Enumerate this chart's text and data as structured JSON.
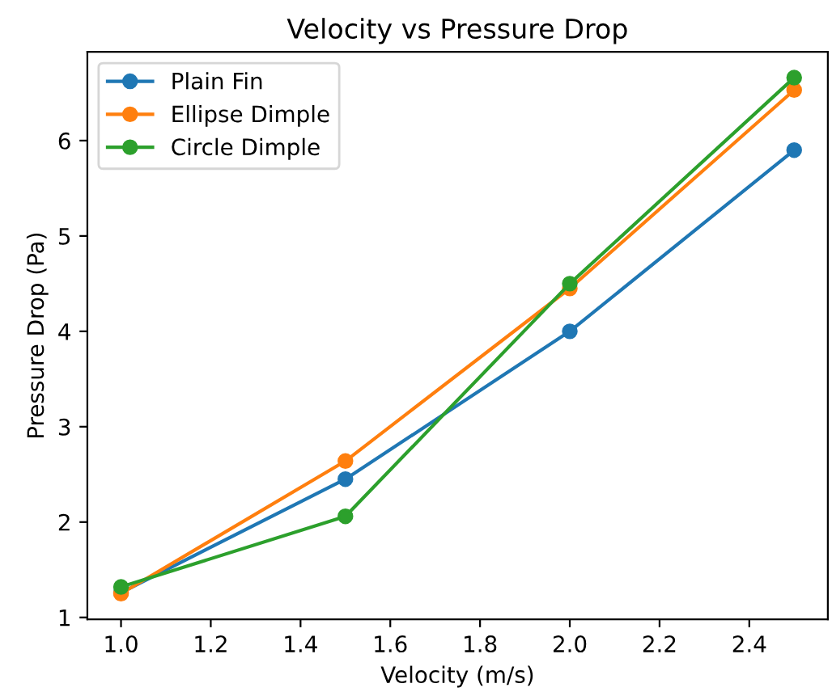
{
  "chart_data": {
    "type": "line",
    "title": "Velocity vs Pressure Drop",
    "xlabel": "Velocity (m/s)",
    "ylabel": "Pressure Drop (Pa)",
    "x": [
      1.0,
      1.5,
      2.0,
      2.5
    ],
    "series": [
      {
        "name": "Plain Fin",
        "color": "#1f77b4",
        "values": [
          1.26,
          2.45,
          4.0,
          5.9
        ]
      },
      {
        "name": "Ellipse Dimple",
        "color": "#ff7f0e",
        "values": [
          1.25,
          2.64,
          4.45,
          6.53
        ]
      },
      {
        "name": "Circle Dimple",
        "color": "#2ca02c",
        "values": [
          1.32,
          2.06,
          4.5,
          6.66
        ]
      }
    ],
    "xlim": [
      0.925,
      2.575
    ],
    "xticks": [
      {
        "value": 1.0,
        "label": "1.0"
      },
      {
        "value": 1.2,
        "label": "1.2"
      },
      {
        "value": 1.4,
        "label": "1.4"
      },
      {
        "value": 1.6,
        "label": "1.6"
      },
      {
        "value": 1.8,
        "label": "1.8"
      },
      {
        "value": 2.0,
        "label": "2.0"
      },
      {
        "value": 2.2,
        "label": "2.2"
      },
      {
        "value": 2.4,
        "label": "2.4"
      }
    ],
    "ylim": [
      0.98,
      6.93
    ],
    "yticks": [
      1,
      2,
      3,
      4,
      5,
      6
    ],
    "marker": "circle",
    "line_style": "solid",
    "legend": "top left",
    "grid": false
  }
}
